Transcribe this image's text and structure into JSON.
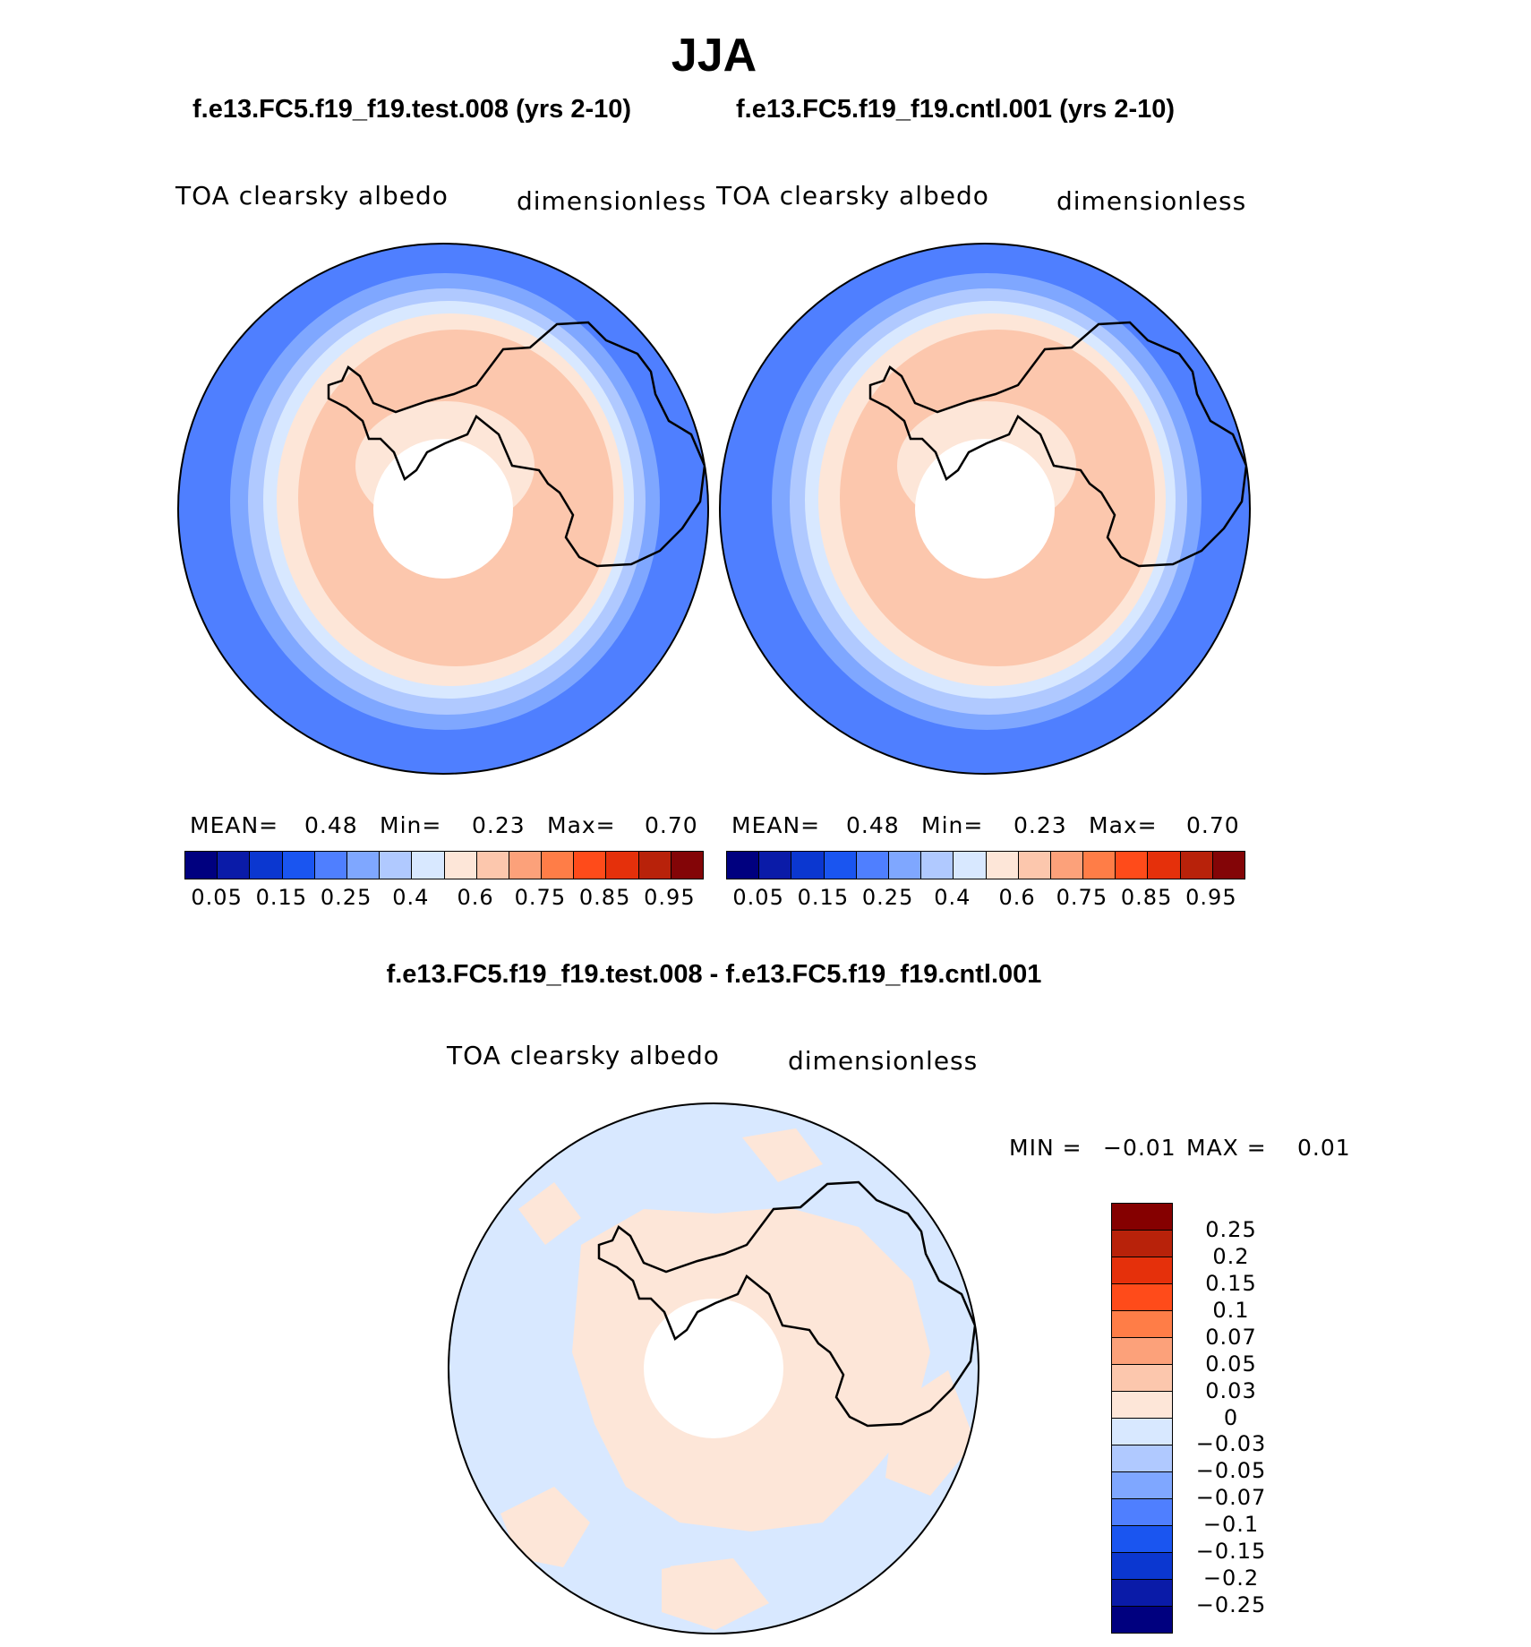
{
  "page": {
    "season": "JJA"
  },
  "panels": [
    {
      "case": "f.e13.FC5.f19_f19.test.008 (yrs 2-10)",
      "variable": "TOA clearsky albedo",
      "units": "dimensionless",
      "mean_label": "MEAN=",
      "mean": "0.48",
      "min_label": "Min=",
      "min": "0.23",
      "max_label": "Max=",
      "max": "0.70"
    },
    {
      "case": "f.e13.FC5.f19_f19.cntl.001 (yrs 2-10)",
      "variable": "TOA clearsky albedo",
      "units": "dimensionless",
      "mean_label": "MEAN=",
      "mean": "0.48",
      "min_label": "Min=",
      "min": "0.23",
      "max_label": "Max=",
      "max": "0.70"
    }
  ],
  "diff": {
    "title": "f.e13.FC5.f19_f19.test.008 - f.e13.FC5.f19_f19.cntl.001",
    "variable": "TOA clearsky albedo",
    "units": "dimensionless",
    "min_label": "MIN =",
    "min": "−0.01",
    "max_label": "MAX =",
    "max": "0.01"
  },
  "colorbar_main": {
    "colors": [
      "#00007f",
      "#0a1ba8",
      "#0b37d0",
      "#1a55f0",
      "#4f7fff",
      "#7fa7ff",
      "#b0c9ff",
      "#d8e8ff",
      "#fde6d8",
      "#fcc7ad",
      "#fca17a",
      "#ff7d47",
      "#ff4b1a",
      "#e5300b",
      "#b8220a",
      "#830507"
    ],
    "labels": [
      "0.05",
      "0.15",
      "0.25",
      "0.4",
      "0.6",
      "0.75",
      "0.85",
      "0.95"
    ]
  },
  "colorbar_diff": {
    "colors": [
      "#850000",
      "#b8220a",
      "#e5300b",
      "#ff4b1a",
      "#ff7d47",
      "#fca17a",
      "#fcc7ad",
      "#fde6d8",
      "#d8e8ff",
      "#b0c9ff",
      "#7fa7ff",
      "#4f7fff",
      "#1a55f0",
      "#0b37d0",
      "#0a1ba8",
      "#00007f"
    ],
    "labels": [
      "0.25",
      "0.2",
      "0.15",
      "0.1",
      "0.07",
      "0.05",
      "0.03",
      "0",
      "−0.03",
      "−0.05",
      "−0.07",
      "−0.1",
      "−0.15",
      "−0.2",
      "−0.25"
    ]
  }
}
